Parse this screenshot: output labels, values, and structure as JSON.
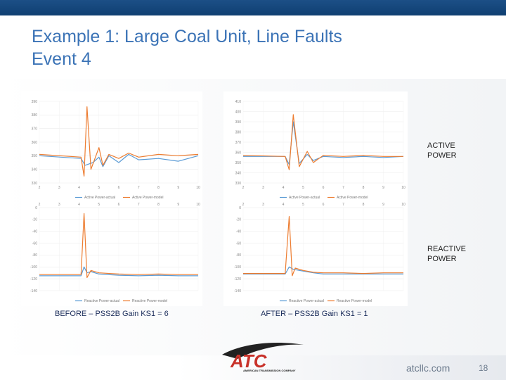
{
  "slide": {
    "title_line1": "Example 1: Large Coal Unit, Line Faults",
    "title_line2": "Event 4",
    "site": "atcllc.com",
    "page_number": "18"
  },
  "labels": {
    "active_power_1": "ACTIVE",
    "active_power_2": "POWER",
    "reactive_power_1": "REACTIVE",
    "reactive_power_2": "POWER"
  },
  "captions": {
    "before": "BEFORE – PSS2B Gain KS1 = 6",
    "after": "AFTER – PSS2B Gain KS1 = 1"
  },
  "colors": {
    "actual": "#5b9bd5",
    "model": "#ed7d31",
    "title": "#3b73b6",
    "topbar": "#114274"
  },
  "logo": {
    "name": "ATC logo",
    "text": "AMERICAN TRANSMISSION COMPANY"
  },
  "chart_data": [
    {
      "type": "line",
      "x_ticks": [
        "2",
        "3",
        "4",
        "5",
        "6",
        "7",
        "8",
        "9",
        "10"
      ],
      "y_ticks": [
        "390",
        "380",
        "370",
        "360",
        "350",
        "340",
        "330"
      ],
      "xlim": [
        2,
        10
      ],
      "series": [
        {
          "name": "Active Power-actual",
          "x": [
            2,
            4.1,
            4.3,
            4.7,
            5.0,
            5.2,
            5.5,
            6.0,
            6.5,
            7.0,
            8.0,
            9.0,
            10.0
          ],
          "y": [
            350,
            348,
            343,
            345,
            349,
            342,
            350,
            345,
            351,
            347,
            348,
            346,
            350
          ]
        },
        {
          "name": "Active Power-model",
          "x": [
            2,
            4.1,
            4.25,
            4.4,
            4.6,
            5.0,
            5.2,
            5.5,
            6.0,
            6.5,
            7.0,
            8.0,
            9.0,
            10.0
          ],
          "y": [
            351,
            349,
            335,
            386,
            340,
            356,
            343,
            351,
            348,
            352,
            349,
            351,
            350,
            351
          ]
        }
      ]
    },
    {
      "type": "line",
      "x_ticks": [
        "2",
        "3",
        "4",
        "5",
        "6",
        "7",
        "8",
        "9",
        "10"
      ],
      "y_ticks": [
        "410",
        "400",
        "390",
        "380",
        "370",
        "360",
        "350",
        "340",
        "330"
      ],
      "xlim": [
        2,
        10
      ],
      "series": [
        {
          "name": "Active Power-actual",
          "x": [
            2,
            4.1,
            4.3,
            4.5,
            4.8,
            5.2,
            5.5,
            6.0,
            7.0,
            8.0,
            9.0,
            10.0
          ],
          "y": [
            356,
            356,
            348,
            390,
            349,
            358,
            352,
            356,
            355,
            356,
            355,
            356
          ]
        },
        {
          "name": "Active Power-model",
          "x": [
            2,
            4.1,
            4.3,
            4.5,
            4.8,
            5.2,
            5.5,
            6.0,
            7.0,
            8.0,
            9.0,
            10.0
          ],
          "y": [
            357,
            356,
            343,
            397,
            346,
            361,
            350,
            357,
            356,
            357,
            356,
            356
          ]
        }
      ]
    },
    {
      "type": "line",
      "x_ticks": [
        "2",
        "3",
        "4",
        "5",
        "6",
        "7",
        "8",
        "9",
        "10"
      ],
      "y_ticks": [
        "0",
        "-20",
        "-40",
        "-60",
        "-80",
        "-100",
        "-120",
        "-140"
      ],
      "xlim": [
        2,
        10
      ],
      "series": [
        {
          "name": "Reactive Power-actual",
          "x": [
            2,
            4.1,
            4.25,
            4.4,
            4.6,
            5.0,
            6.0,
            7.0,
            8.0,
            9.0,
            10.0
          ],
          "y": [
            -115,
            -115,
            -100,
            -110,
            -108,
            -112,
            -114,
            -115,
            -114,
            -115,
            -115
          ]
        },
        {
          "name": "Reactive Power-model",
          "x": [
            2,
            4.1,
            4.25,
            4.4,
            4.6,
            5.0,
            6.0,
            7.0,
            8.0,
            9.0,
            10.0
          ],
          "y": [
            -113,
            -113,
            -10,
            -118,
            -106,
            -110,
            -112,
            -113,
            -112,
            -113,
            -113
          ]
        }
      ]
    },
    {
      "type": "line",
      "x_ticks": [
        "2",
        "3",
        "4",
        "5",
        "6",
        "7",
        "8",
        "9",
        "10"
      ],
      "y_ticks": [
        "0",
        "-20",
        "-40",
        "-60",
        "-80",
        "-100",
        "-120",
        "-140"
      ],
      "xlim": [
        2,
        10
      ],
      "series": [
        {
          "name": "Reactive Power-actual",
          "x": [
            2,
            4.1,
            4.3,
            4.5,
            4.8,
            5.5,
            6.0,
            7.0,
            8.0,
            9.0,
            10.0
          ],
          "y": [
            -112,
            -112,
            -100,
            -104,
            -106,
            -110,
            -112,
            -112,
            -112,
            -112,
            -112
          ]
        },
        {
          "name": "Reactive Power-model",
          "x": [
            2,
            4.1,
            4.3,
            4.45,
            4.6,
            5.0,
            5.5,
            6.0,
            7.0,
            8.0,
            9.0,
            10.0
          ],
          "y": [
            -111,
            -111,
            -15,
            -115,
            -102,
            -106,
            -109,
            -110,
            -110,
            -111,
            -110,
            -110
          ]
        }
      ]
    }
  ]
}
